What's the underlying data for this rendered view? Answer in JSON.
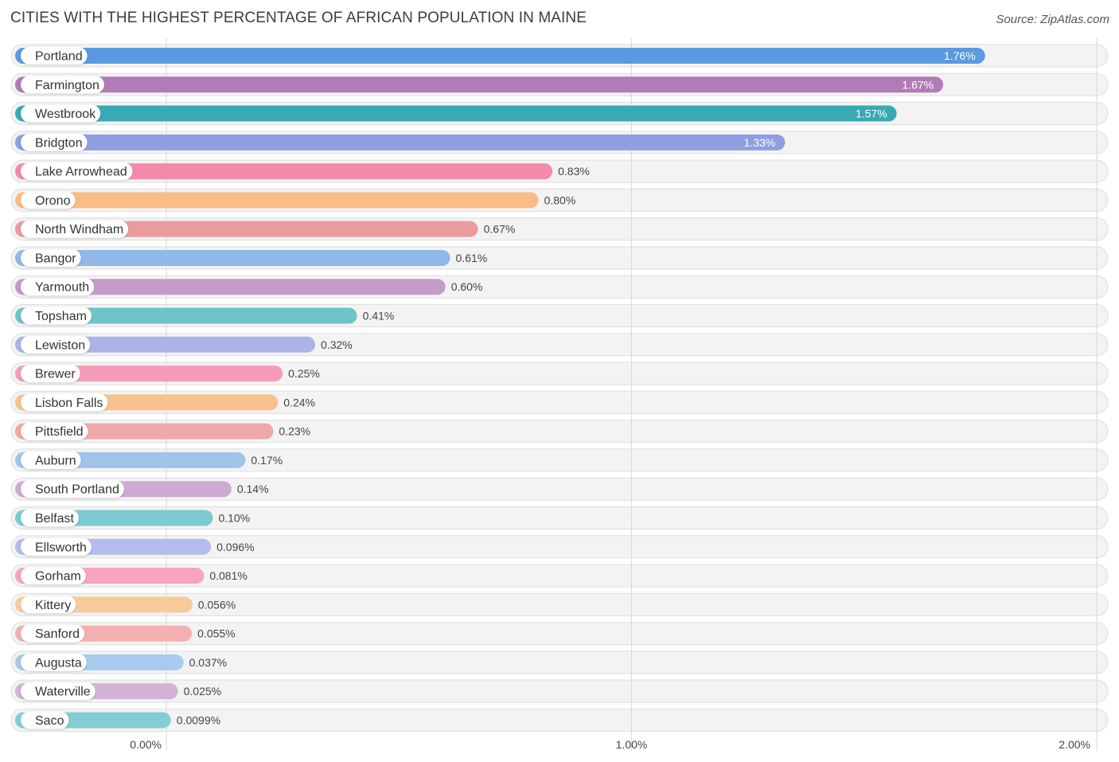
{
  "title": "CITIES WITH THE HIGHEST PERCENTAGE OF AFRICAN POPULATION IN MAINE",
  "source": "Source: ZipAtlas.com",
  "chart_data": {
    "type": "bar",
    "orientation": "horizontal",
    "title": "CITIES WITH THE HIGHEST PERCENTAGE OF AFRICAN POPULATION IN MAINE",
    "xlabel": "",
    "ylabel": "",
    "xlim": [
      0,
      2.0
    ],
    "ticks": [
      {
        "value": 0,
        "label": "0.00%"
      },
      {
        "value": 1,
        "label": "1.00%"
      },
      {
        "value": 2,
        "label": "2.00%"
      }
    ],
    "categories": [
      "Portland",
      "Farmington",
      "Westbrook",
      "Bridgton",
      "Lake Arrowhead",
      "Orono",
      "North Windham",
      "Bangor",
      "Yarmouth",
      "Topsham",
      "Lewiston",
      "Brewer",
      "Lisbon Falls",
      "Pittsfield",
      "Auburn",
      "South Portland",
      "Belfast",
      "Ellsworth",
      "Gorham",
      "Kittery",
      "Sanford",
      "Augusta",
      "Waterville",
      "Saco"
    ],
    "values": [
      1.76,
      1.67,
      1.57,
      1.33,
      0.83,
      0.8,
      0.67,
      0.61,
      0.6,
      0.41,
      0.32,
      0.25,
      0.24,
      0.23,
      0.17,
      0.14,
      0.1,
      0.096,
      0.081,
      0.056,
      0.055,
      0.037,
      0.025,
      0.0099
    ],
    "value_labels": [
      "1.76%",
      "1.67%",
      "1.57%",
      "1.33%",
      "0.83%",
      "0.80%",
      "0.67%",
      "0.61%",
      "0.60%",
      "0.41%",
      "0.32%",
      "0.25%",
      "0.24%",
      "0.23%",
      "0.17%",
      "0.14%",
      "0.10%",
      "0.096%",
      "0.081%",
      "0.056%",
      "0.055%",
      "0.037%",
      "0.025%",
      "0.0099%"
    ],
    "colors": [
      "#5b9ae0",
      "#b07cb6",
      "#38aab5",
      "#8e9ee0",
      "#f48aaa",
      "#f8bc85",
      "#eb9b9b",
      "#90b8e8",
      "#c49cc8",
      "#6ec3c8",
      "#aab4e6",
      "#f59cba",
      "#f8c290",
      "#f0a8a8",
      "#a0c4ec",
      "#cfabd4",
      "#7ccbd0",
      "#b2bced",
      "#f6a4c2",
      "#f9ca9a",
      "#f2b0b0",
      "#a8caee",
      "#d4b2d8",
      "#82ced2"
    ]
  }
}
